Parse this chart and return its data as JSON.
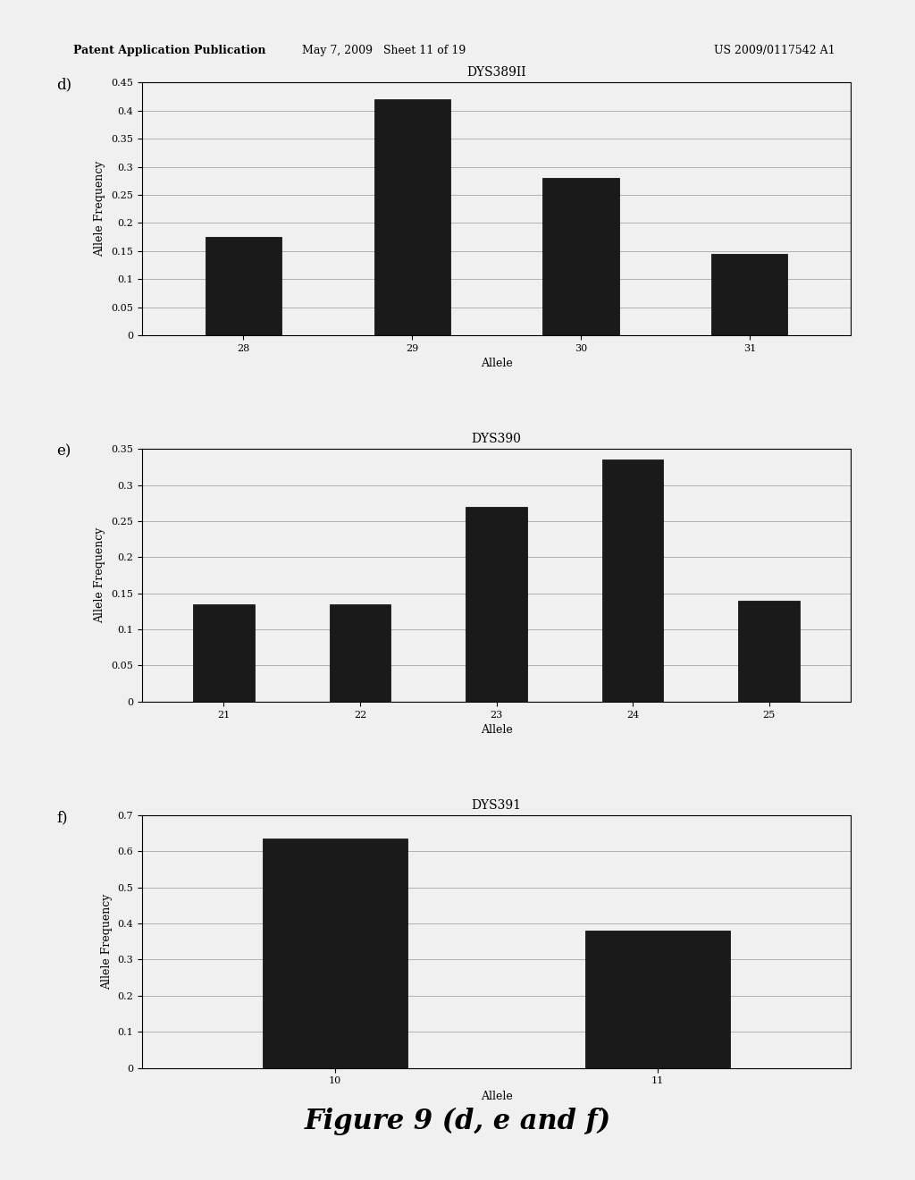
{
  "charts": [
    {
      "label": "d)",
      "title": "DYS389II",
      "categories": [
        28,
        29,
        30,
        31
      ],
      "values": [
        0.175,
        0.42,
        0.28,
        0.145
      ],
      "ylim": [
        0,
        0.45
      ],
      "yticks": [
        0,
        0.05,
        0.1,
        0.15,
        0.2,
        0.25,
        0.3,
        0.35,
        0.4,
        0.45
      ],
      "xlabel": "Allele",
      "ylabel": "Allele Frequency"
    },
    {
      "label": "e)",
      "title": "DYS390",
      "categories": [
        21,
        22,
        23,
        24,
        25
      ],
      "values": [
        0.135,
        0.135,
        0.27,
        0.335,
        0.14
      ],
      "ylim": [
        0,
        0.35
      ],
      "yticks": [
        0,
        0.05,
        0.1,
        0.15,
        0.2,
        0.25,
        0.3,
        0.35
      ],
      "xlabel": "Allele",
      "ylabel": "Allele Frequency"
    },
    {
      "label": "f)",
      "title": "DYS391",
      "categories": [
        10,
        11
      ],
      "values": [
        0.635,
        0.38
      ],
      "ylim": [
        0,
        0.7
      ],
      "yticks": [
        0,
        0.1,
        0.2,
        0.3,
        0.4,
        0.5,
        0.6,
        0.7
      ],
      "xlabel": "Allele",
      "ylabel": "Allele Frequency"
    }
  ],
  "bar_color": "#1a1a1a",
  "bar_edge_color": "#000000",
  "background_color": "#f0f0f0",
  "chart_bg_color": "#f0f0f0",
  "header_text_left": "Patent Application Publication",
  "header_text_mid": "May 7, 2009   Sheet 11 of 19",
  "header_text_right": "US 2009/0117542 A1",
  "figure_caption": "Figure 9 (d, e and f)",
  "grid_color": "#999999",
  "title_fontsize": 10,
  "axis_label_fontsize": 9,
  "tick_fontsize": 8,
  "caption_fontsize": 22,
  "header_fontsize": 9,
  "panel_label_fontsize": 12
}
